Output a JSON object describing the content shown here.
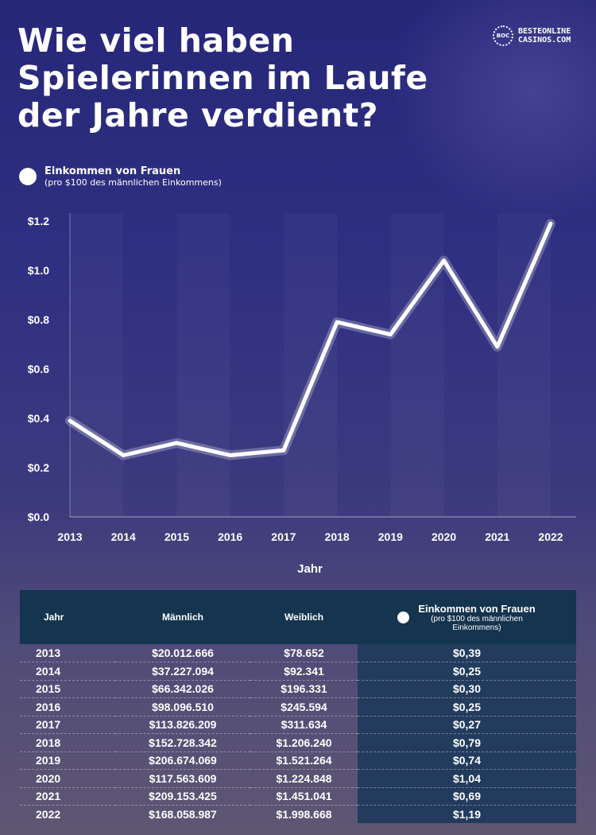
{
  "title": "Wie viel haben Spielerinnen im Laufe der Jahre verdient?",
  "logo": {
    "seal": "BOC",
    "line1": "BESTEONLINE",
    "line2": "CASINOS.COM"
  },
  "legend": {
    "label": "Einkommen von Frauen",
    "sublabel": "(pro $100 des männlichen Einkommens)"
  },
  "chart_data": {
    "type": "line",
    "title": "Wie viel haben Spielerinnen im Laufe der Jahre verdient?",
    "xlabel": "Jahr",
    "ylabel": "",
    "x": [
      "2013",
      "2014",
      "2015",
      "2016",
      "2017",
      "2018",
      "2019",
      "2020",
      "2021",
      "2022"
    ],
    "series": [
      {
        "name": "Einkommen von Frauen",
        "values": [
          0.39,
          0.25,
          0.3,
          0.25,
          0.27,
          0.79,
          0.74,
          1.04,
          0.69,
          1.19
        ]
      }
    ],
    "ylim": [
      0,
      1.2
    ],
    "yticks": [
      "$0.0",
      "$0.2",
      "$0.4",
      "$0.6",
      "$0.8",
      "$1.0",
      "$1.2"
    ],
    "legend": "top-left",
    "line_color": "#ffffff",
    "grid": false
  },
  "table": {
    "headers": [
      "Jahr",
      "Männlich",
      "Weiblich",
      "Einkommen von Frauen"
    ],
    "ratio_sub": "(pro $100 des männlichen Einkommens)",
    "rows": [
      [
        "2013",
        "$20.012.666",
        "$78.652",
        "$0,39"
      ],
      [
        "2014",
        "$37.227.094",
        "$92.341",
        "$0,25"
      ],
      [
        "2015",
        "$66.342.026",
        "$196.331",
        "$0,30"
      ],
      [
        "2016",
        "$98.096.510",
        "$245.594",
        "$0,25"
      ],
      [
        "2017",
        "$113.826.209",
        "$311.634",
        "$0,27"
      ],
      [
        "2018",
        "$152.728.342",
        "$1.206.240",
        "$0,79"
      ],
      [
        "2019",
        "$206.674.069",
        "$1.521.264",
        "$0,74"
      ],
      [
        "2020",
        "$117.563.609",
        "$1.224.848",
        "$1,04"
      ],
      [
        "2021",
        "$209.153.425",
        "$1.451.041",
        "$0,69"
      ],
      [
        "2022",
        "$168.058.987",
        "$1.998.668",
        "$1,19"
      ]
    ]
  }
}
